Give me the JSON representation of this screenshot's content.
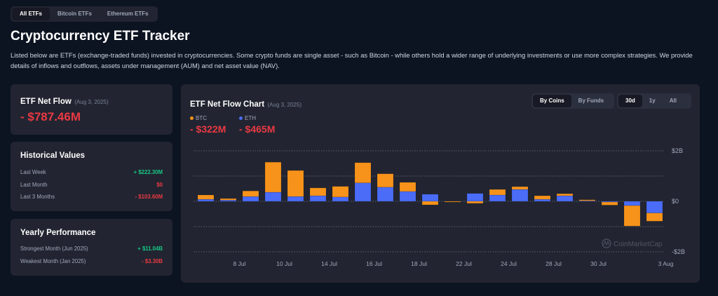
{
  "tabs": [
    {
      "label": "All ETFs",
      "active": true
    },
    {
      "label": "Bitcoin ETFs",
      "active": false
    },
    {
      "label": "Ethereum ETFs",
      "active": false
    }
  ],
  "page_title": "Cryptocurrency ETF Tracker",
  "description": "Listed below are ETFs (exchange-traded funds) invested in cryptocurrencies. Some crypto funds are single asset - such as Bitcoin - while others hold a wider range of underlying investments or use more complex strategies. We provide details of inflows and outflows, assets under management (AUM) and net asset value (NAV).",
  "net_flow": {
    "title": "ETF Net Flow",
    "date": "(Aug 3, 2025)",
    "value": "- $787.46M"
  },
  "historical": {
    "title": "Historical Values",
    "rows": [
      {
        "label": "Last Week",
        "value": "+ $222.30M",
        "sign": "pos"
      },
      {
        "label": "Last Month",
        "value": "$0",
        "sign": "neg"
      },
      {
        "label": "Last 3 Months",
        "value": "- $103.60M",
        "sign": "neg"
      }
    ]
  },
  "yearly": {
    "title": "Yearly Performance",
    "rows": [
      {
        "label": "Strongest Month (Jun 2025)",
        "value": "+ $11.04B",
        "sign": "pos"
      },
      {
        "label": "Weakest Month (Jan 2025)",
        "value": "- $3.30B",
        "sign": "neg"
      }
    ]
  },
  "chart_card": {
    "title": "ETF Net Flow Chart",
    "date": "(Aug 3, 2025)",
    "view_toggle": [
      {
        "label": "By Coins",
        "active": true
      },
      {
        "label": "By Funds",
        "active": false
      }
    ],
    "range_toggle": [
      {
        "label": "30d",
        "active": true
      },
      {
        "label": "1y",
        "active": false
      },
      {
        "label": "All",
        "active": false
      }
    ],
    "legend": [
      {
        "name": "BTC",
        "value": "- $322M",
        "color": "#f7931a"
      },
      {
        "name": "ETH",
        "value": "- $465M",
        "color": "#4a6cf7"
      }
    ],
    "watermark": "CoinMarketCap"
  },
  "chart_data": {
    "type": "bar",
    "stacked": true,
    "title": "ETF Net Flow Chart",
    "x": [
      "5 Jul",
      "6 Jul",
      "7 Jul",
      "8 Jul",
      "9 Jul",
      "10 Jul",
      "11 Jul",
      "12 Jul",
      "13 Jul",
      "14 Jul",
      "15 Jul",
      "16 Jul",
      "17 Jul",
      "18 Jul",
      "19 Jul",
      "20 Jul",
      "21 Jul",
      "22 Jul",
      "23 Jul",
      "24 Jul",
      "25 Jul"
    ],
    "x_tick_labels": [
      "8 Jul",
      "10 Jul",
      "14 Jul",
      "16 Jul",
      "18 Jul",
      "22 Jul",
      "24 Jul",
      "28 Jul",
      "30 Jul",
      "3 Aug"
    ],
    "x_tick_indices": [
      1,
      3,
      5,
      7,
      9,
      11,
      13,
      15,
      17,
      20
    ],
    "series": [
      {
        "name": "ETH",
        "color": "#4a6cf7",
        "values": [
          0.08,
          0.05,
          0.19,
          0.36,
          0.19,
          0.22,
          0.17,
          0.73,
          0.56,
          0.39,
          0.28,
          0.0,
          0.31,
          0.25,
          0.47,
          0.08,
          0.22,
          0.02,
          -0.03,
          -0.17,
          -0.465
        ]
      },
      {
        "name": "BTC",
        "color": "#f7931a",
        "values": [
          0.17,
          0.06,
          0.22,
          1.19,
          1.03,
          0.31,
          0.42,
          0.8,
          0.53,
          0.36,
          -0.14,
          -0.03,
          -0.08,
          0.22,
          0.11,
          0.14,
          0.08,
          0.04,
          -0.12,
          -0.81,
          -0.322
        ]
      }
    ],
    "y_tick_labels": [
      "$2B",
      "$0",
      "-$2B"
    ],
    "y_ticks": [
      2,
      0,
      -2
    ],
    "ylim": [
      -2,
      2
    ],
    "yunit": "B USD",
    "grid": true
  }
}
